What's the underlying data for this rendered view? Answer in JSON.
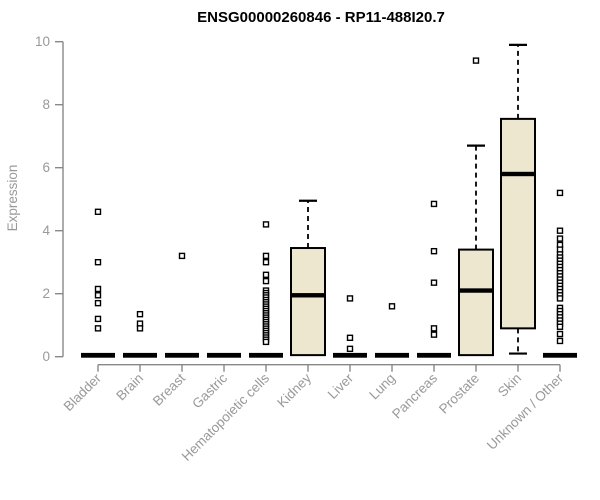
{
  "chart_data": {
    "type": "box",
    "title": "ENSG00000260846 - RP11-488I20.7",
    "ylabel": "Expression",
    "xlabel": "",
    "ylim": [
      0,
      10
    ],
    "yticks": [
      0,
      2,
      4,
      6,
      8,
      10
    ],
    "grid": false,
    "legend": "none",
    "categories": [
      "Bladder",
      "Brain",
      "Breast",
      "Gastric",
      "Hematopoietic cells",
      "Kidney",
      "Liver",
      "Lung",
      "Pancreas",
      "Prostate",
      "Skin",
      "Unknown / Other"
    ],
    "boxes": [
      {
        "category": "Bladder",
        "q1": 0,
        "median": 0,
        "q3": 0,
        "whisker_low": 0,
        "whisker_high": 0,
        "outliers": [
          4.6,
          3.0,
          2.15,
          1.95,
          1.7,
          1.2,
          0.9
        ]
      },
      {
        "category": "Brain",
        "q1": 0,
        "median": 0,
        "q3": 0,
        "whisker_low": 0,
        "whisker_high": 0,
        "outliers": [
          1.35,
          1.05,
          0.9
        ]
      },
      {
        "category": "Breast",
        "q1": 0,
        "median": 0,
        "q3": 0,
        "whisker_low": 0,
        "whisker_high": 0,
        "outliers": [
          3.2
        ]
      },
      {
        "category": "Gastric",
        "q1": 0,
        "median": 0,
        "q3": 0,
        "whisker_low": 0,
        "whisker_high": 0,
        "outliers": []
      },
      {
        "category": "Hematopoietic cells",
        "q1": 0,
        "median": 0,
        "q3": 0,
        "whisker_low": 0,
        "whisker_high": 0,
        "outliers": [
          4.2,
          3.2,
          3.0,
          2.6,
          2.4,
          2.1,
          2.02,
          1.95,
          1.88,
          1.8,
          1.73,
          1.66,
          1.59,
          1.52,
          1.45,
          1.38,
          1.31,
          1.24,
          1.17,
          1.1,
          1.03,
          0.96,
          0.89,
          0.82,
          0.75,
          0.68,
          0.61,
          0.54,
          0.47
        ]
      },
      {
        "category": "Kidney",
        "q1": 0.05,
        "median": 1.95,
        "q3": 3.45,
        "whisker_low": 0.05,
        "whisker_high": 4.95,
        "outliers": []
      },
      {
        "category": "Liver",
        "q1": 0,
        "median": 0,
        "q3": 0,
        "whisker_low": 0,
        "whisker_high": 0,
        "outliers": [
          1.85,
          0.6,
          0.25
        ]
      },
      {
        "category": "Lung",
        "q1": 0,
        "median": 0,
        "q3": 0,
        "whisker_low": 0,
        "whisker_high": 0,
        "outliers": [
          1.6
        ]
      },
      {
        "category": "Pancreas",
        "q1": 0,
        "median": 0,
        "q3": 0,
        "whisker_low": 0,
        "whisker_high": 0,
        "outliers": [
          4.85,
          3.35,
          2.35,
          0.9,
          0.7
        ]
      },
      {
        "category": "Prostate",
        "q1": 0.05,
        "median": 2.1,
        "q3": 3.4,
        "whisker_low": 0.05,
        "whisker_high": 6.7,
        "outliers": [
          9.4
        ]
      },
      {
        "category": "Skin",
        "q1": 0.9,
        "median": 5.8,
        "q3": 7.55,
        "whisker_low": 0.1,
        "whisker_high": 9.9,
        "outliers": []
      },
      {
        "category": "Unknown / Other",
        "q1": 0,
        "median": 0,
        "q3": 0,
        "whisker_low": 0,
        "whisker_high": 0,
        "outliers": [
          5.2,
          4.0,
          3.75,
          3.55,
          3.4,
          3.25,
          3.15,
          3.05,
          2.95,
          2.85,
          2.75,
          2.65,
          2.55,
          2.45,
          2.35,
          2.25,
          2.15,
          2.05,
          1.95,
          1.85,
          1.55,
          1.45,
          1.35,
          1.25,
          1.15,
          1.05,
          0.95,
          0.72,
          0.5
        ]
      }
    ],
    "colors": {
      "box_fill": "#ede7cf",
      "box_stroke": "#000000",
      "median": "#000000",
      "outlier_stroke": "#000000",
      "axis": "#888888",
      "tick_label": "#999999",
      "title": "#000000",
      "background": "#ffffff"
    }
  }
}
